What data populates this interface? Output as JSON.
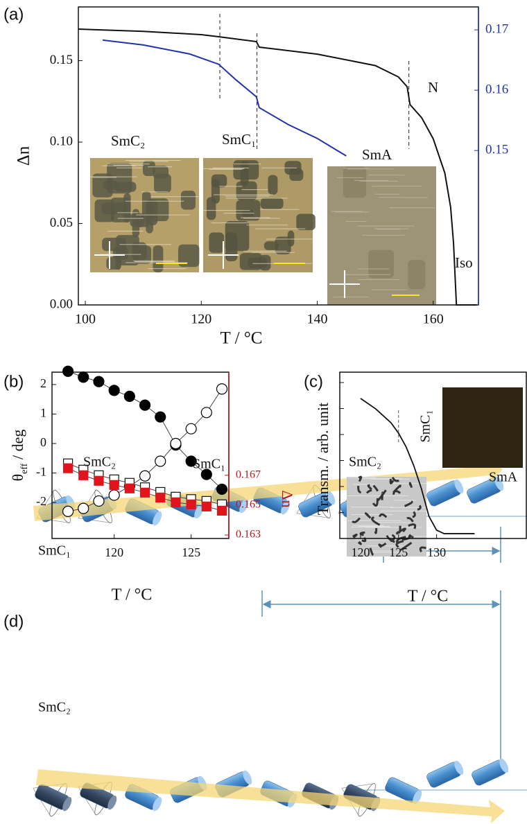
{
  "figure": {
    "panel_labels": [
      "(a)",
      "(b)",
      "(c)",
      "(d)"
    ],
    "diagram": {
      "labels": [
        "SmC₁",
        "SmC₂"
      ]
    }
  },
  "chart_data": [
    {
      "type": "line",
      "x_label": "T / °C",
      "y_label": "Δn",
      "xlim": [
        98.8,
        167.8
      ],
      "xticks": [
        100,
        120,
        140,
        160
      ],
      "ylim": [
        0,
        0.183
      ],
      "yticks": [
        {
          "value": 0,
          "label": "0.00"
        },
        0.05,
        {
          "value": 0.1,
          "label": "0.10"
        },
        0.15
      ],
      "y2lim": [
        0.1244,
        0.1738
      ],
      "y2ticks": [
        0.15,
        0.16,
        0.17
      ],
      "y2color": "#2233aa",
      "series": [
        {
          "color": "#111111",
          "axis": "y",
          "x": [
            98.8,
            110,
            120,
            123,
            129.5,
            130,
            140,
            150,
            154,
            155.5,
            156,
            158,
            160,
            162,
            163,
            163.5,
            164,
            167.5
          ],
          "values": [
            0.1694,
            0.168,
            0.166,
            0.1647,
            0.1617,
            0.1583,
            0.154,
            0.147,
            0.14,
            0.134,
            0.123,
            0.115,
            0.102,
            0.081,
            0.06,
            0.038,
            0,
            0
          ]
        },
        {
          "color": "#2233aa",
          "axis": "y2",
          "x": [
            103,
            110,
            118,
            123,
            126,
            129.5,
            130,
            135,
            140,
            145
          ],
          "values": [
            0.1683,
            0.1675,
            0.166,
            0.1643,
            0.1617,
            0.1589,
            0.1571,
            0.1543,
            0.152,
            0.1491
          ]
        }
      ],
      "phase_transitions": [
        123.2,
        129.6,
        155.8
      ],
      "annotations": [
        "SmC₂",
        "SmC₁",
        "SmA",
        "N",
        "Iso"
      ]
    },
    {
      "type": "scatter-line",
      "x_label": "T / °C",
      "y_label": {
        "symbol": "θ",
        "sub": "eff",
        "unit": " / deg"
      },
      "y2_label": "Δn",
      "xlim": [
        115.96,
        127.45
      ],
      "xticks": [
        120,
        125
      ],
      "ylim": [
        -3.22,
        2.42
      ],
      "yticks": [
        2,
        1,
        0,
        -1,
        -2
      ],
      "y2lim": [
        0.16277,
        0.1739
      ],
      "y2ticks": [
        0.167,
        0.165,
        0.163
      ],
      "y2color": "#c0141c",
      "x": [
        117,
        118,
        119,
        120,
        121,
        122,
        123,
        124,
        125,
        126,
        127
      ],
      "series": [
        {
          "color": "#000000",
          "marker": "circle",
          "filled": true,
          "axis": "y",
          "values": [
            2.45,
            2.25,
            2.1,
            1.8,
            1.6,
            1.3,
            0.9,
            -0.05,
            -0.6,
            -1.05,
            -1.55
          ]
        },
        {
          "color": "#000000",
          "marker": "circle",
          "filled": false,
          "axis": "y",
          "values": [
            -2.3,
            -2.2,
            -1.95,
            -1.75,
            -1.45,
            -1.1,
            -0.6,
            0,
            0.5,
            1.05,
            1.85
          ]
        },
        {
          "color": "#e0141c",
          "marker": "square",
          "filled": false,
          "axis": "y2",
          "values": [
            0.16779,
            0.16737,
            0.167,
            0.16672,
            0.16649,
            0.16619,
            0.16588,
            0.16556,
            0.1654,
            0.16528,
            0.16505
          ]
        },
        {
          "color": "#e0141c",
          "marker": "square",
          "filled": true,
          "axis": "y2",
          "values": [
            0.16747,
            0.167,
            0.16663,
            0.16635,
            0.16612,
            0.16584,
            0.16551,
            0.16519,
            0.16505,
            0.16491,
            0.16463
          ]
        }
      ],
      "annotations": [
        "SmC₂",
        "SmC₁"
      ]
    },
    {
      "type": "line",
      "x_label": "T / °C",
      "y_label": "Transm. / arb. unit",
      "xlim": [
        117.27,
        141.8
      ],
      "xticks": [
        120,
        125,
        130
      ],
      "ylim": [
        0,
        1
      ],
      "series": [
        {
          "color": "#111111",
          "x": [
            120,
            122,
            124,
            125,
            126,
            127,
            128,
            129,
            130,
            131,
            133,
            135
          ],
          "values": [
            0.842,
            0.779,
            0.696,
            0.633,
            0.55,
            0.438,
            0.3,
            0.133,
            0.05,
            0.029,
            0.029,
            0.029
          ]
        }
      ],
      "phase_transitions": [
        125
      ],
      "annotations": [
        "SmC₂",
        "SmC₁",
        "SmA"
      ]
    }
  ]
}
